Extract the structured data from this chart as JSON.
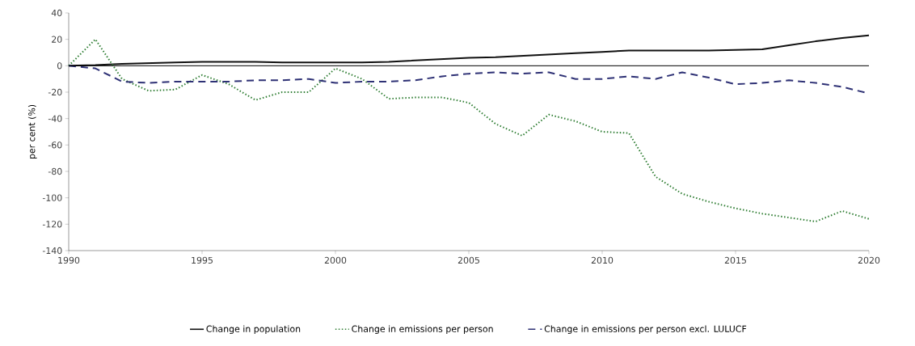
{
  "chart_data": {
    "type": "line",
    "ylabel": "per cent (%)",
    "x": [
      1990,
      1991,
      1992,
      1993,
      1994,
      1995,
      1996,
      1997,
      1998,
      1999,
      2000,
      2001,
      2002,
      2003,
      2004,
      2005,
      2006,
      2007,
      2008,
      2009,
      2010,
      2011,
      2012,
      2013,
      2014,
      2015,
      2016,
      2017,
      2018,
      2019,
      2020
    ],
    "xlim": [
      1990,
      2020
    ],
    "xticks": [
      1990,
      1995,
      2000,
      2005,
      2010,
      2015,
      2020
    ],
    "ylim": [
      -140,
      40
    ],
    "yticks": [
      -140,
      -120,
      -100,
      -80,
      -60,
      -40,
      -20,
      0,
      20,
      40
    ],
    "series": [
      {
        "name": "Change in population",
        "color": "#111111",
        "line_style": "solid",
        "values": [
          0,
          0.5,
          1.5,
          2,
          2.5,
          3,
          3,
          3,
          2.5,
          2.5,
          2.5,
          2.5,
          3,
          4,
          5,
          6,
          6.5,
          7.5,
          8.5,
          9.5,
          10.5,
          11.5,
          11.5,
          11.5,
          11.5,
          12,
          12.5,
          15.5,
          18.5,
          21,
          23
        ]
      },
      {
        "name": "Change in emissions per person",
        "color": "#2e7d32",
        "line_style": "dotted",
        "values": [
          0,
          20,
          -10,
          -19,
          -18,
          -7,
          -14,
          -26,
          -20,
          -20,
          -2,
          -10,
          -25,
          -24,
          -24,
          -28,
          -44,
          -53,
          -37,
          -42,
          -50,
          -51,
          -84,
          -97,
          -103,
          -108,
          -112,
          -115,
          -118,
          -110,
          -116
        ]
      },
      {
        "name": "Change in emissions per person excl. LULUCF",
        "color": "#2e3175",
        "line_style": "dashed",
        "values": [
          0,
          -2,
          -12,
          -13,
          -12,
          -12,
          -12,
          -11,
          -11,
          -10,
          -13,
          -12,
          -12,
          -11,
          -8,
          -6,
          -5,
          -6,
          -5,
          -10,
          -10,
          -8,
          -10,
          -5,
          -9,
          -14,
          -13,
          -11,
          -13,
          -16,
          -21
        ]
      }
    ],
    "ref_lines": [
      {
        "axis": "y",
        "value": 0,
        "color": "#000000"
      }
    ],
    "legend": "bottom",
    "grid": false,
    "marker": "none"
  }
}
